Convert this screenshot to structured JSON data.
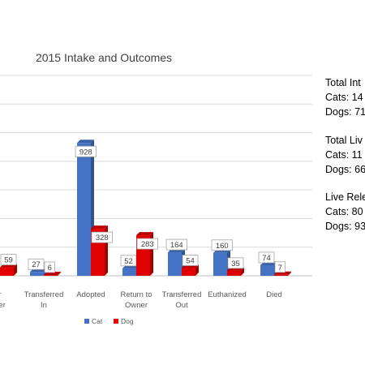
{
  "chart_data": {
    "type": "bar",
    "title": "2015 Intake and Outcomes",
    "categories": [
      [
        "Owner",
        "Surrender"
      ],
      [
        "Transferred",
        "In"
      ],
      [
        "Adopted"
      ],
      [
        "Return to",
        "Owner"
      ],
      [
        "Transferred",
        "Out"
      ],
      [
        "Euthanized"
      ],
      [
        "Died"
      ]
    ],
    "category_labels_visible": [
      [
        "r",
        "ner"
      ],
      [
        "Transferred",
        "In"
      ],
      [
        "Adopted"
      ],
      [
        "Return to",
        "Owner"
      ],
      [
        "Transferred",
        "Out"
      ],
      [
        "Euthanized"
      ],
      [
        "Died"
      ]
    ],
    "series": [
      {
        "name": "Cat",
        "color": "#4472c4",
        "values": [
          null,
          27,
          928,
          52,
          164,
          160,
          74
        ]
      },
      {
        "name": "Dog",
        "color": "#e00000",
        "values": [
          59,
          6,
          328,
          283,
          54,
          35,
          7
        ]
      }
    ],
    "ylim": [
      0,
      1400
    ],
    "grid": true,
    "legend": "bottom"
  },
  "side_panel": {
    "total_intake_heading": "Total Int",
    "total_intake_cats": "Cats: 14",
    "total_intake_dogs": "Dogs: 71",
    "total_live_heading": "Total Liv",
    "total_live_cats": "Cats: 11",
    "total_live_dogs": "Dogs: 66",
    "live_release_heading": "Live Rele",
    "live_release_cats": "Cats: 80",
    "live_release_dogs": "Dogs: 93"
  }
}
